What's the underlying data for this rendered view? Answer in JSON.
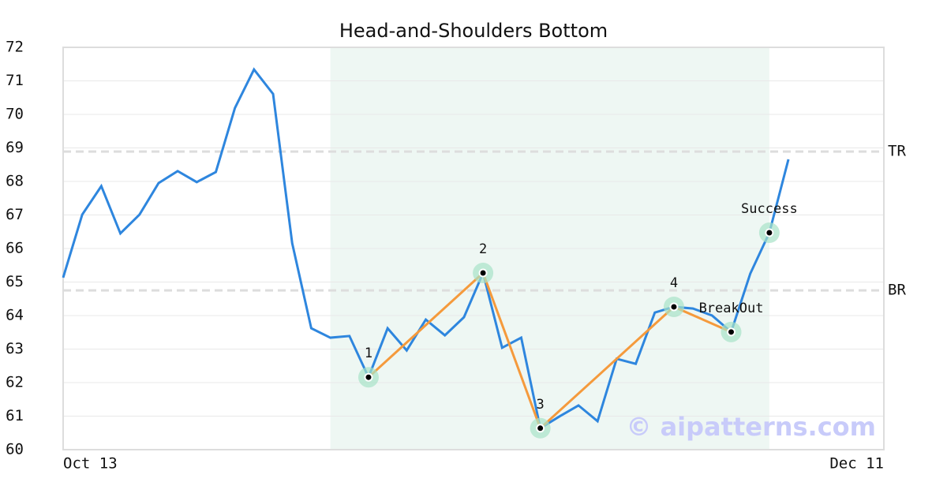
{
  "chart_data": {
    "type": "line",
    "title": "Head-and-Shoulders Bottom",
    "watermark": "© aipatterns.com",
    "x": [
      0,
      1,
      2,
      3,
      4,
      5,
      6,
      7,
      8,
      9,
      10,
      11,
      12,
      13,
      14,
      15,
      16,
      17,
      18,
      19,
      20,
      21,
      22,
      23,
      24,
      25,
      26,
      27,
      28,
      29,
      30,
      31,
      32,
      33,
      34,
      35,
      36,
      37,
      38
    ],
    "series": [
      {
        "color": "#2e86de",
        "values": [
          65.13,
          67.01,
          67.86,
          66.45,
          67.01,
          67.95,
          68.31,
          67.98,
          68.28,
          70.19,
          71.34,
          70.61,
          66.16,
          63.62,
          63.34,
          63.39,
          62.16,
          63.62,
          62.96,
          63.88,
          63.41,
          63.95,
          65.27,
          63.04,
          63.34,
          60.64,
          60.99,
          61.32,
          60.85,
          62.71,
          62.56,
          64.09,
          64.26,
          64.21,
          64.0,
          63.51,
          65.25,
          66.47,
          68.66
        ]
      }
    ],
    "pattern": {
      "color": "#f59a3c",
      "x": [
        16,
        22,
        25,
        32,
        35,
        37
      ],
      "values": [
        62.16,
        65.27,
        60.64,
        64.26,
        63.51,
        66.47
      ],
      "labels": [
        "1",
        "2",
        "3",
        "4",
        "BreakOut",
        "Success"
      ],
      "connected": 5
    },
    "highlight": [
      14,
      37
    ],
    "levels": [
      {
        "label": "TR",
        "value": 68.89
      },
      {
        "label": "BR",
        "value": 64.75
      }
    ],
    "xlim": [
      0,
      43
    ],
    "xticks": [
      {
        "value": 0,
        "label": "Oct 13"
      },
      {
        "value": 43,
        "label": "Dec 11"
      }
    ],
    "ylim": [
      60,
      72
    ],
    "yticks": [
      60,
      61,
      62,
      63,
      64,
      65,
      66,
      67,
      68,
      69,
      70,
      71,
      72
    ],
    "grid": true
  }
}
